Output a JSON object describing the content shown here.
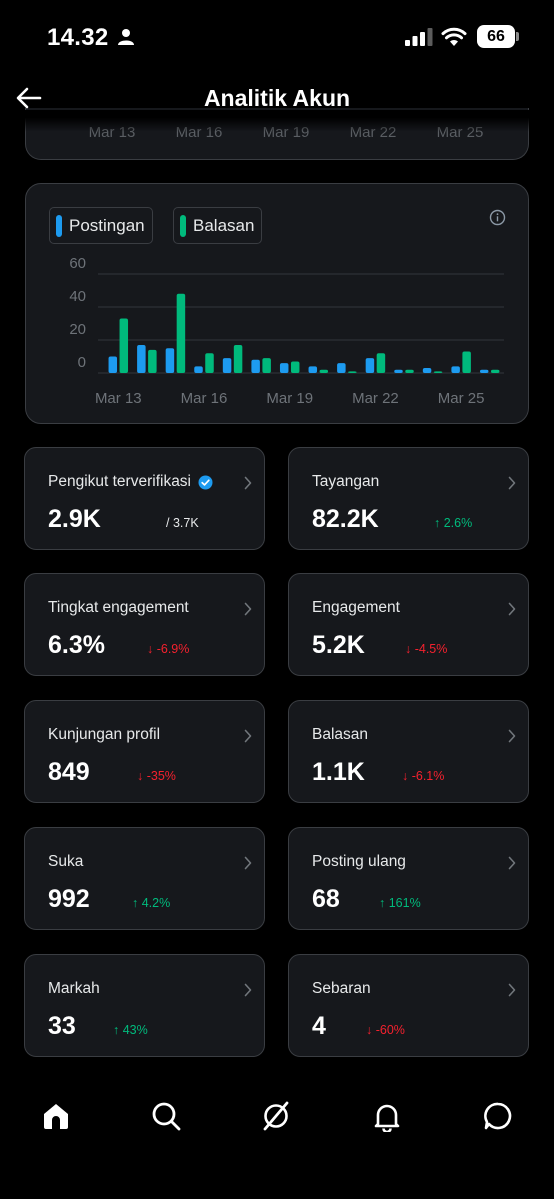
{
  "status_bar": {
    "time": "14.32",
    "battery": "66"
  },
  "header": {
    "title": "Analitik Akun"
  },
  "top_card": {
    "x_labels": [
      "Mar 13",
      "Mar 16",
      "Mar 19",
      "Mar 22",
      "Mar 25"
    ]
  },
  "legend": {
    "posts": "Postingan",
    "replies": "Balasan"
  },
  "colors": {
    "posts": "#1d9bf0",
    "replies": "#00ba7c",
    "up": "#00ba7c",
    "down": "#f4212e"
  },
  "chart_data": {
    "type": "bar",
    "categories": [
      "Mar 13",
      "Mar 14",
      "Mar 15",
      "Mar 16",
      "Mar 17",
      "Mar 18",
      "Mar 19",
      "Mar 20",
      "Mar 21",
      "Mar 22",
      "Mar 23",
      "Mar 24",
      "Mar 25",
      "Mar 26"
    ],
    "x_tick_labels": [
      "Mar 13",
      "Mar 16",
      "Mar 19",
      "Mar 22",
      "Mar 25"
    ],
    "y_ticks": [
      0,
      20,
      40,
      60
    ],
    "ylim": [
      0,
      60
    ],
    "grid": true,
    "legend_position": "top-left",
    "series": [
      {
        "name": "Postingan",
        "values": [
          10,
          17,
          15,
          4,
          9,
          8,
          6,
          4,
          6,
          9,
          2,
          3,
          4,
          2
        ]
      },
      {
        "name": "Balasan",
        "values": [
          33,
          14,
          48,
          12,
          17,
          9,
          7,
          2,
          1,
          12,
          2,
          1,
          13,
          2
        ]
      }
    ]
  },
  "stats": [
    {
      "label": "Pengikut terverifikasi",
      "value": "2.9K",
      "change": "/ 3.7K",
      "trend": "none",
      "verified": true
    },
    {
      "label": "Tayangan",
      "value": "82.2K",
      "change": "↑ 2.6%",
      "trend": "up"
    },
    {
      "label": "Tingkat engagement",
      "value": "6.3%",
      "change": "↓ -6.9%",
      "trend": "down"
    },
    {
      "label": "Engagement",
      "value": "5.2K",
      "change": "↓ -4.5%",
      "trend": "down"
    },
    {
      "label": "Kunjungan profil",
      "value": "849",
      "change": "↓ -35%",
      "trend": "down"
    },
    {
      "label": "Balasan",
      "value": "1.1K",
      "change": "↓ -6.1%",
      "trend": "down"
    },
    {
      "label": "Suka",
      "value": "992",
      "change": "↑ 4.2%",
      "trend": "up"
    },
    {
      "label": "Posting ulang",
      "value": "68",
      "change": "↑ 161%",
      "trend": "up"
    },
    {
      "label": "Markah",
      "value": "33",
      "change": "↑ 43%",
      "trend": "up"
    },
    {
      "label": "Sebaran",
      "value": "4",
      "change": "↓ -60%",
      "trend": "down"
    }
  ],
  "nav": [
    "home-icon",
    "search-icon",
    "grok-icon",
    "notifications-icon",
    "messages-icon"
  ]
}
